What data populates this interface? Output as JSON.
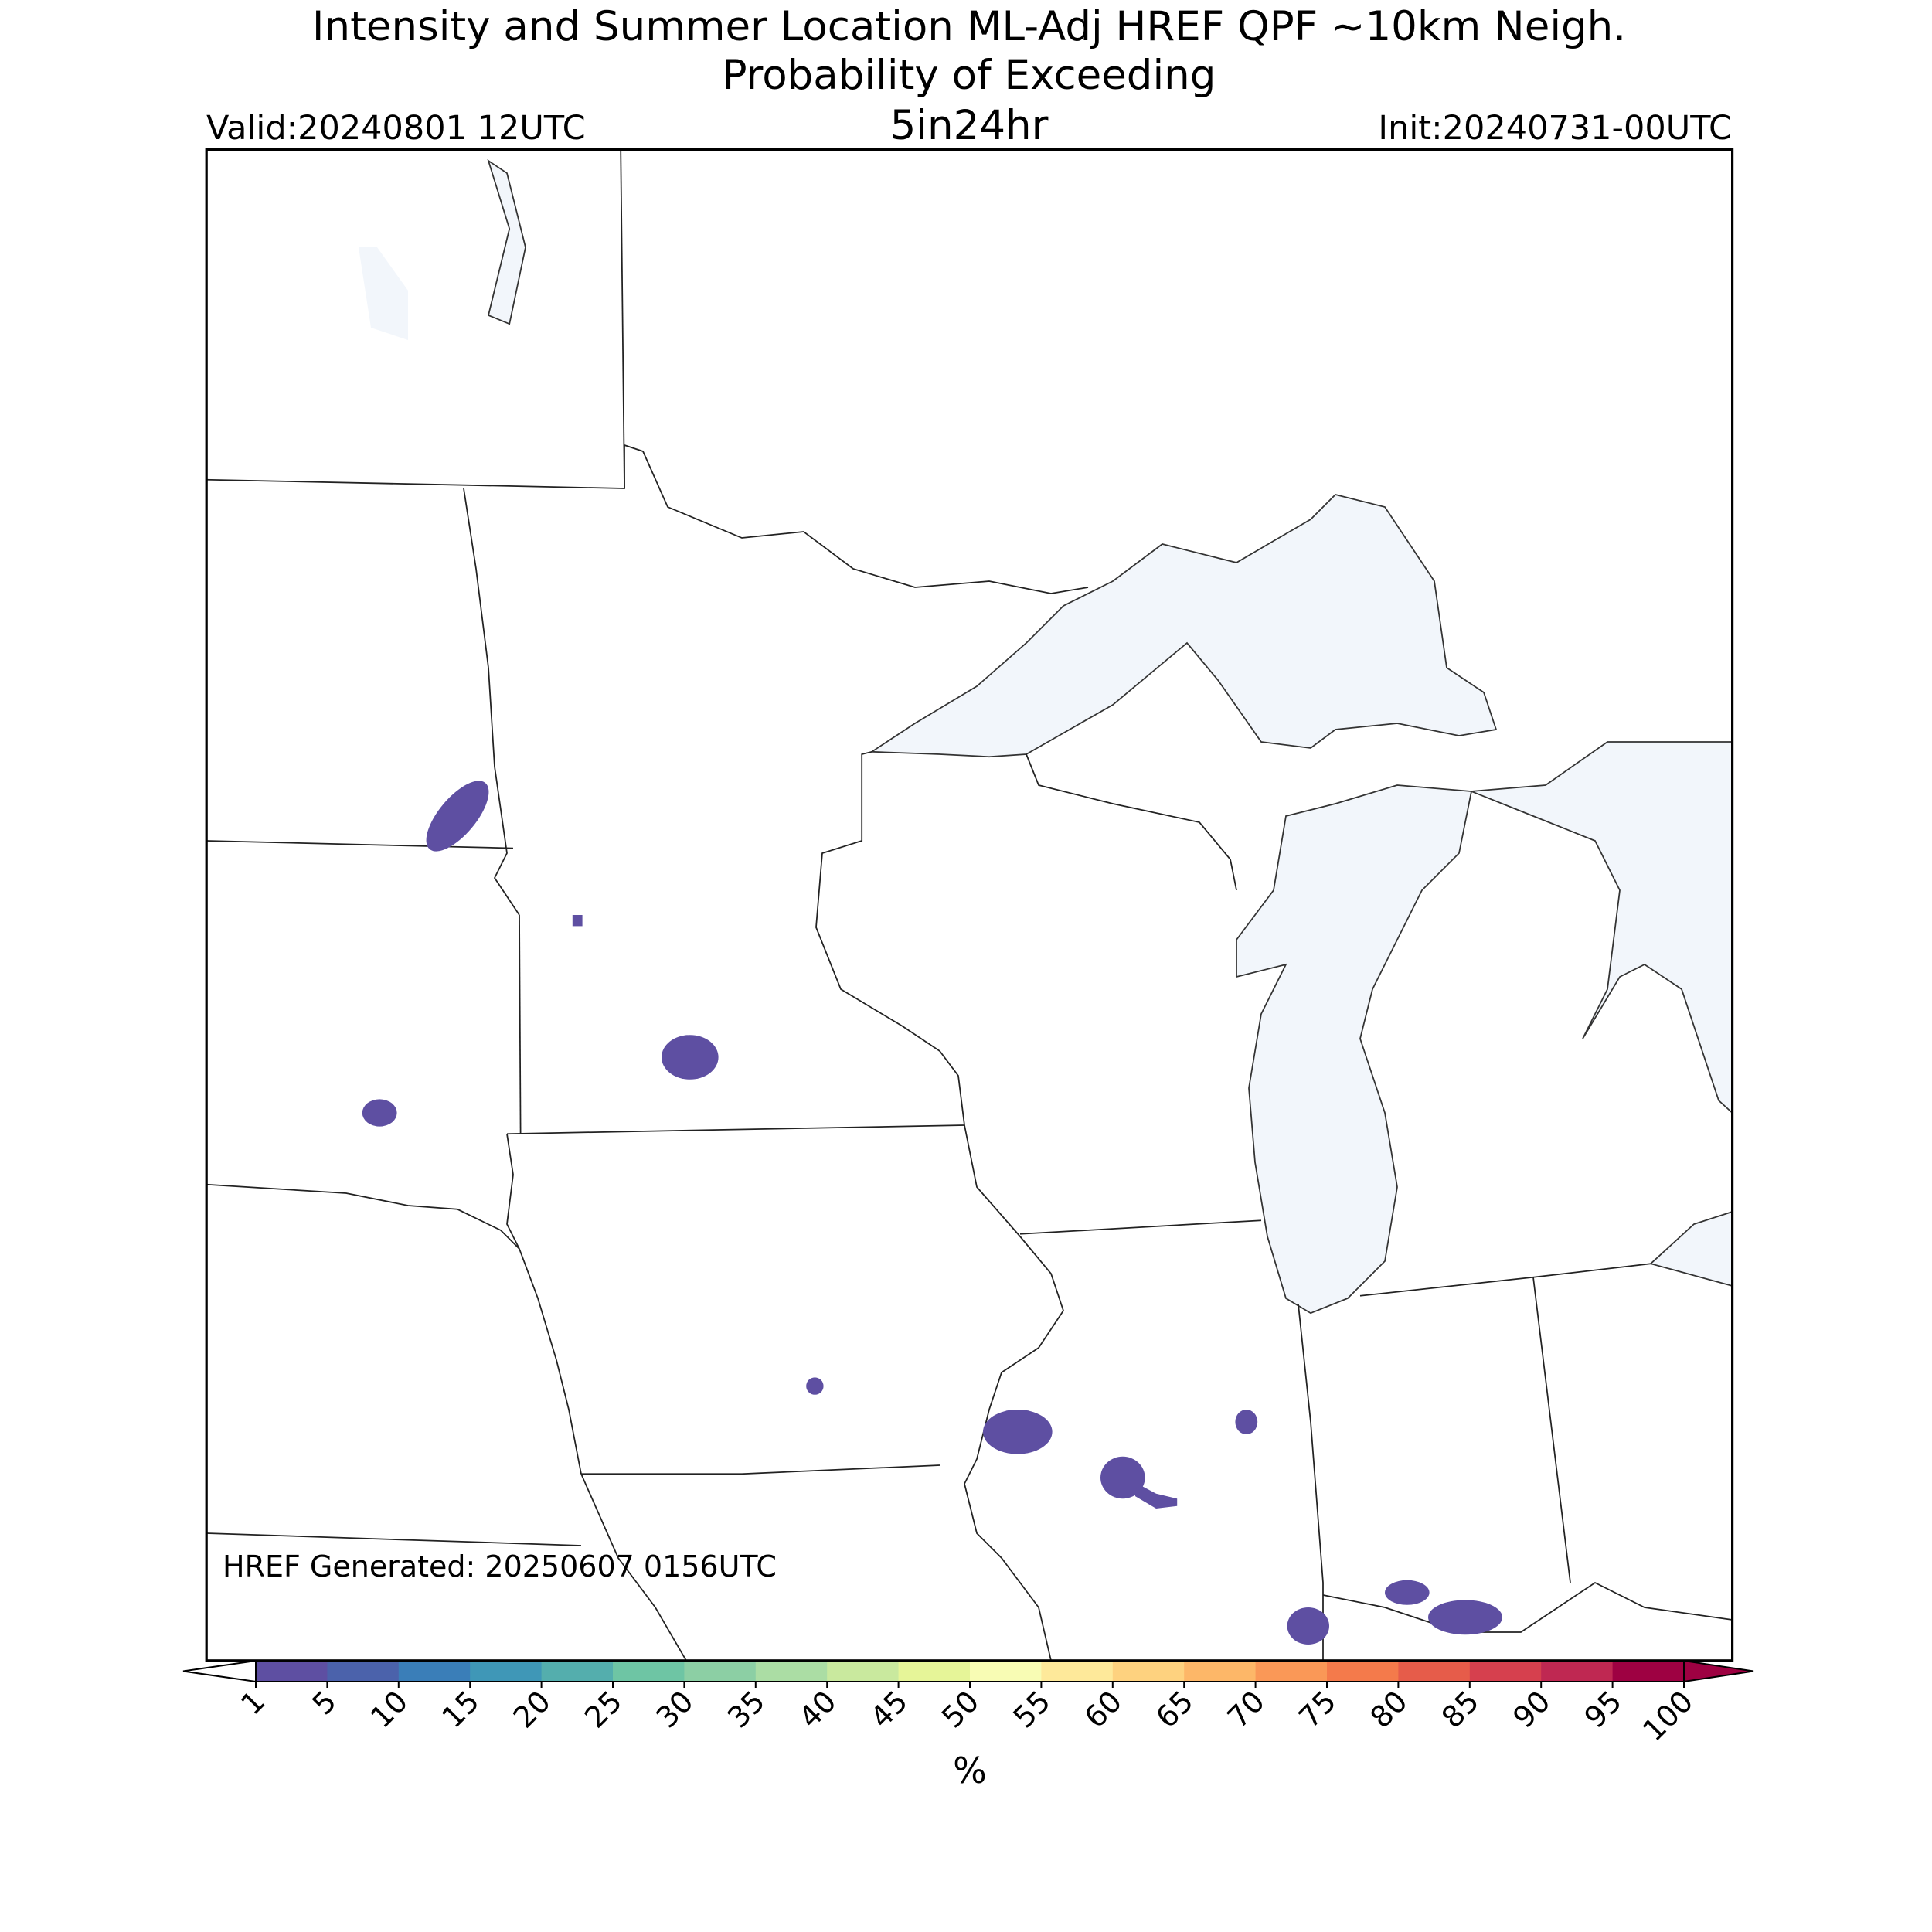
{
  "chart_data": {
    "type": "probability-map",
    "title": "Intensity and Summer Location ML-Adj HREF QPF ~10km Neigh.",
    "subtitle": "Probability of Exceeding",
    "threshold": "5in24hr",
    "valid": "Valid:20240801 12UTC",
    "init": "Init:20240731-00UTC",
    "generated": "HREF Generated: 20250607 0156UTC",
    "colorbar": {
      "label": "%",
      "ticks": [
        1,
        5,
        10,
        15,
        20,
        25,
        30,
        35,
        40,
        45,
        50,
        55,
        60,
        65,
        70,
        75,
        80,
        85,
        90,
        95,
        100
      ],
      "colors": [
        "#5e4fa2",
        "#4b62ab",
        "#3a7eb8",
        "#3f97b7",
        "#54aead",
        "#6ec5a4",
        "#8ccfa4",
        "#abdda4",
        "#c9e99e",
        "#e6f598",
        "#f8fcb4",
        "#fee99a",
        "#fed27f",
        "#fdb768",
        "#fa9857",
        "#f47a4b",
        "#e65c4a",
        "#d6404e",
        "#bf2852",
        "#9e0142"
      ],
      "under_color": "#ffffff",
      "over_color": "#9e0142"
    }
  }
}
